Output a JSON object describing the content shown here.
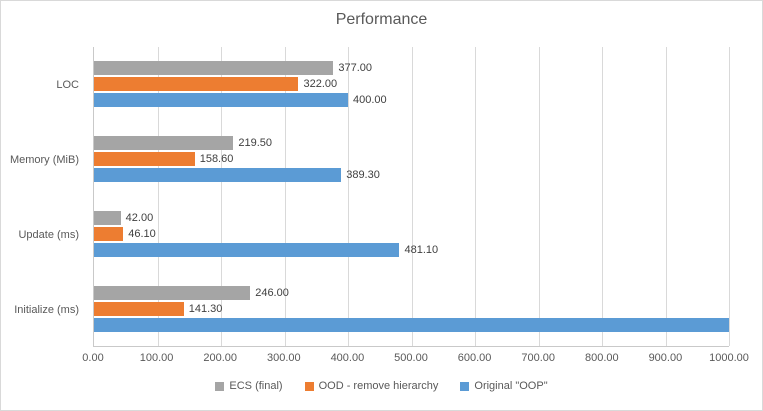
{
  "title": "Performance",
  "chart_data": {
    "type": "bar",
    "orientation": "horizontal",
    "title": "Performance",
    "categories": [
      "LOC",
      "Memory (MiB)",
      "Update (ms)",
      "Initialize (ms)"
    ],
    "series": [
      {
        "name": "ECS (final)",
        "color": "#a5a5a5",
        "values": [
          377.0,
          219.5,
          42.0,
          246.0
        ],
        "labels": [
          "377.00",
          "219.50",
          "42.00",
          "246.00"
        ]
      },
      {
        "name": "OOD - remove hierarchy",
        "color": "#ed7d31",
        "values": [
          322.0,
          158.6,
          46.1,
          141.3
        ],
        "labels": [
          "322.00",
          "158.60",
          "46.10",
          "141.30"
        ]
      },
      {
        "name": "Original \"OOP\"",
        "color": "#5b9bd5",
        "values": [
          400.0,
          389.3,
          481.1,
          1000.0
        ],
        "labels": [
          "400.00",
          "389.30",
          "481.10",
          ""
        ]
      }
    ],
    "xlim": [
      0,
      1000
    ],
    "xtick_step": 100,
    "xtick_labels": [
      "0.00",
      "100.00",
      "200.00",
      "300.00",
      "400.00",
      "500.00",
      "600.00",
      "700.00",
      "800.00",
      "900.00",
      "1000.00"
    ],
    "grid": true,
    "legend_position": "bottom"
  }
}
